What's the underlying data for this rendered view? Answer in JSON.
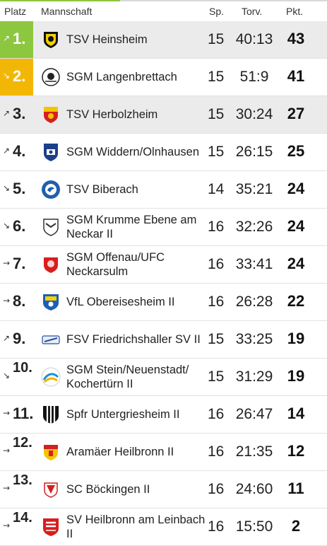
{
  "header": {
    "platz": "Platz",
    "mannschaft": "Mannschaft",
    "sp": "Sp.",
    "torv": "Torv.",
    "pkt": "Pkt."
  },
  "rows": [
    {
      "arrow": "↗",
      "rank": "1.",
      "team": "TSV Heinsheim",
      "sp": "15",
      "torv": "40:13",
      "pkt": "43",
      "color": "#8dc63f"
    },
    {
      "arrow": "↘",
      "rank": "2.",
      "team": "SGM Langenbrettach",
      "sp": "15",
      "torv": "51:9",
      "pkt": "41",
      "color": "#f2b705"
    },
    {
      "arrow": "↗",
      "rank": "3.",
      "team": "TSV Herbolzheim",
      "sp": "15",
      "torv": "30:24",
      "pkt": "27"
    },
    {
      "arrow": "↗",
      "rank": "4.",
      "team": "SGM Widdern/Olnhausen",
      "sp": "15",
      "torv": "26:15",
      "pkt": "25"
    },
    {
      "arrow": "↘",
      "rank": "5.",
      "team": "TSV Biberach",
      "sp": "14",
      "torv": "35:21",
      "pkt": "24"
    },
    {
      "arrow": "↘",
      "rank": "6.",
      "team": "SGM Krumme Ebene am Neckar II",
      "sp": "16",
      "torv": "32:26",
      "pkt": "24"
    },
    {
      "arrow": "→",
      "rank": "7.",
      "team": "SGM Offenau/UFC Neckarsulm",
      "sp": "16",
      "torv": "33:41",
      "pkt": "24"
    },
    {
      "arrow": "→",
      "rank": "8.",
      "team": "VfL Obereisesheim II",
      "sp": "16",
      "torv": "26:28",
      "pkt": "22"
    },
    {
      "arrow": "↗",
      "rank": "9.",
      "team": "FSV Friedrichshaller SV II",
      "sp": "15",
      "torv": "33:25",
      "pkt": "19"
    },
    {
      "arrow": "↘",
      "rank": "10.",
      "team": "SGM Stein/Neuenstadt/ Kochertürn II",
      "sp": "15",
      "torv": "31:29",
      "pkt": "19"
    },
    {
      "arrow": "→",
      "rank": "11.",
      "team": "Spfr Untergriesheim II",
      "sp": "16",
      "torv": "26:47",
      "pkt": "14"
    },
    {
      "arrow": "→",
      "rank": "12.",
      "team": "Aramäer Heilbronn II",
      "sp": "16",
      "torv": "21:35",
      "pkt": "12"
    },
    {
      "arrow": "→",
      "rank": "13.",
      "team": "SC Böckingen II",
      "sp": "16",
      "torv": "24:60",
      "pkt": "11"
    },
    {
      "arrow": "→",
      "rank": "14.",
      "team": "SV Heilbronn am Leinbach II",
      "sp": "16",
      "torv": "15:50",
      "pkt": "2"
    }
  ]
}
